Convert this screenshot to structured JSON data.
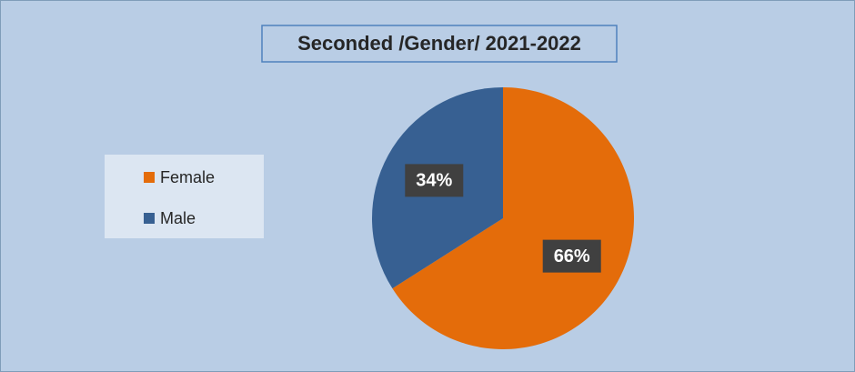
{
  "chart_data": {
    "type": "pie",
    "title": "Seconded /Gender/ 2021-2022",
    "categories": [
      "Female",
      "Male"
    ],
    "values": [
      66,
      34
    ],
    "value_labels": [
      "66%",
      "34%"
    ],
    "colors": [
      "#e46c0a",
      "#376092"
    ],
    "legend": "left"
  }
}
